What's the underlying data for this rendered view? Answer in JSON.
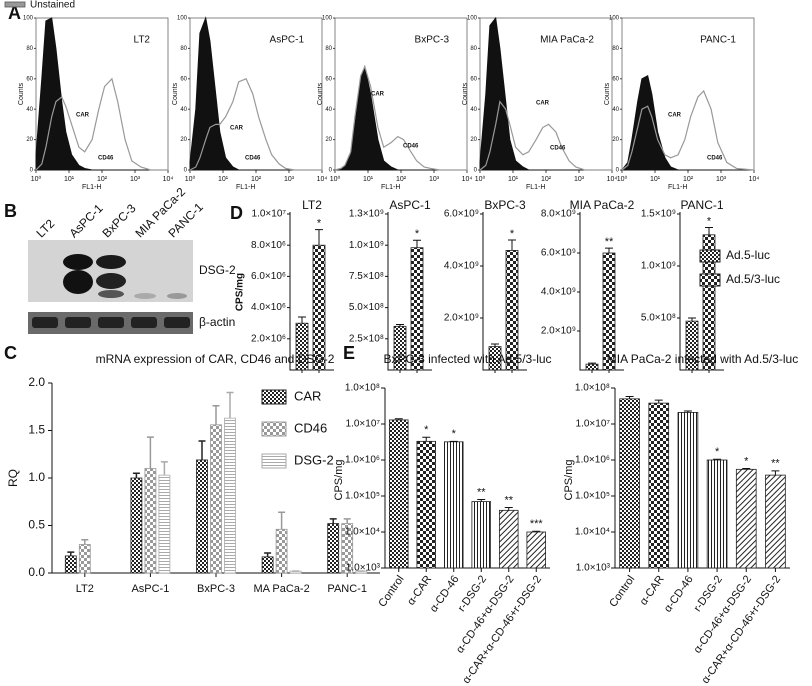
{
  "panel_labels": [
    "A",
    "B",
    "C",
    "D",
    "E"
  ],
  "blot": {
    "lanes": [
      "LT2",
      "AsPC-1",
      "BxPC-3",
      "MIA PaCa-2",
      "PANC-1"
    ],
    "bands": [
      "DSG-2",
      "β-actin"
    ]
  },
  "chart_data": [
    {
      "type": "flow",
      "legend": "Unstained",
      "xlabel": "FL1-H",
      "ylabel": "Counts",
      "log_x": true,
      "xlim": [
        1,
        10000
      ],
      "xticks": [
        {
          "value": 1,
          "label": "10⁰"
        },
        {
          "value": 10,
          "label": "10¹"
        },
        {
          "value": 100,
          "label": "10²"
        },
        {
          "value": 1000,
          "label": "10³"
        },
        {
          "value": 10000,
          "label": "10⁴"
        }
      ],
      "ylim": [
        0,
        100
      ],
      "yticks": [
        0,
        20,
        40,
        60,
        80,
        100
      ],
      "annotations": [
        "CAR",
        "CD46"
      ],
      "unstained_color": "#111111",
      "stained_color": "#999999",
      "x": [
        1,
        1.5,
        2,
        3,
        4,
        6,
        8,
        12,
        20,
        30,
        50,
        80,
        120,
        200,
        300,
        500,
        800,
        1500,
        3000,
        10000
      ],
      "panels": [
        {
          "title": "LT2",
          "unstained": [
            10,
            60,
            98,
            100,
            80,
            45,
            25,
            10,
            3,
            1,
            0,
            0,
            0,
            0,
            0,
            0,
            0,
            0,
            0,
            0
          ],
          "stained": [
            0,
            4,
            15,
            35,
            45,
            48,
            42,
            30,
            15,
            12,
            20,
            40,
            55,
            60,
            45,
            20,
            6,
            2,
            0,
            0
          ]
        },
        {
          "title": "AsPC-1",
          "unstained": [
            5,
            40,
            90,
            100,
            85,
            50,
            25,
            8,
            2,
            0,
            0,
            0,
            0,
            0,
            0,
            0,
            0,
            0,
            0,
            0
          ],
          "stained": [
            0,
            2,
            8,
            20,
            28,
            30,
            30,
            35,
            45,
            58,
            60,
            50,
            35,
            20,
            10,
            4,
            1,
            0,
            0,
            0
          ]
        },
        {
          "title": "BxPC-3",
          "unstained": [
            0,
            1,
            3,
            10,
            30,
            60,
            68,
            50,
            20,
            6,
            2,
            0,
            0,
            0,
            0,
            0,
            0,
            0,
            0,
            0
          ],
          "stained": [
            0,
            1,
            3,
            12,
            35,
            62,
            68,
            55,
            28,
            15,
            18,
            22,
            20,
            12,
            6,
            2,
            1,
            0,
            0,
            0
          ]
        },
        {
          "title": "MIA PaCa-2",
          "unstained": [
            5,
            50,
            95,
            100,
            80,
            45,
            20,
            6,
            2,
            0,
            0,
            0,
            0,
            0,
            0,
            0,
            0,
            0,
            0,
            0
          ],
          "stained": [
            0,
            3,
            12,
            30,
            45,
            40,
            30,
            15,
            10,
            12,
            20,
            28,
            30,
            25,
            15,
            6,
            2,
            0,
            0,
            0
          ]
        },
        {
          "title": "PANC-1",
          "unstained": [
            0,
            5,
            20,
            45,
            60,
            62,
            50,
            25,
            8,
            2,
            0,
            0,
            0,
            0,
            0,
            0,
            0,
            0,
            0,
            0
          ],
          "stained": [
            0,
            3,
            12,
            28,
            40,
            42,
            35,
            20,
            10,
            8,
            10,
            20,
            35,
            48,
            52,
            40,
            18,
            5,
            1,
            0
          ]
        }
      ]
    },
    {
      "type": "small-multiples",
      "ylabel": "CPS/mg",
      "legend": "right",
      "categories": [
        "LT2",
        "AsPC-1",
        "BxPC-3",
        "MIA PaCa-2",
        "PANC-1"
      ],
      "series": [
        {
          "name": "Ad.5-luc",
          "color": "#222222",
          "values": [
            3000000.0,
            350000000.0,
            900000000.0,
            300000000.0,
            470000000.0
          ],
          "errors": [
            400000.0,
            15000000.0,
            100000000.0,
            50000000.0,
            30000000.0
          ]
        },
        {
          "name": "Ad.5/3-luc",
          "color": "#222222",
          "values": [
            8000000.0,
            980000000.0,
            4600000000.0,
            6000000000.0,
            1300000000.0
          ],
          "errors": [
            1000000.0,
            60000000.0,
            400000000.0,
            250000000.0,
            70000000.0
          ]
        }
      ],
      "annotations": [
        "*",
        "*",
        "*",
        "**",
        "*"
      ],
      "axes": [
        {
          "ylim": [
            0,
            10000000.0
          ],
          "yticks": [
            {
              "value": 2000000.0,
              "label": "2.0×10⁶"
            },
            {
              "value": 4000000.0,
              "label": "4.0×10⁶"
            },
            {
              "value": 6000000.0,
              "label": "6.0×10⁶"
            },
            {
              "value": 8000000.0,
              "label": "8.0×10⁶"
            },
            {
              "value": 10000000.0,
              "label": "1.0×10⁷"
            }
          ]
        },
        {
          "ylim": [
            0,
            1250000000.0
          ],
          "yticks": [
            {
              "value": 250000000.0,
              "label": "2.5×10⁸"
            },
            {
              "value": 500000000.0,
              "label": "5.0×10⁸"
            },
            {
              "value": 750000000.0,
              "label": "7.5×10⁸"
            },
            {
              "value": 1000000000.0,
              "label": "1.0×10⁹"
            },
            {
              "value": 1250000000.0,
              "label": "1.3×10⁹"
            }
          ]
        },
        {
          "ylim": [
            0,
            6000000000.0
          ],
          "yticks": [
            {
              "value": 2000000000.0,
              "label": "2.0×10⁹"
            },
            {
              "value": 4000000000.0,
              "label": "4.0×10⁹"
            },
            {
              "value": 6000000000.0,
              "label": "6.0×10⁹"
            }
          ]
        },
        {
          "ylim": [
            0,
            8000000000.0
          ],
          "yticks": [
            {
              "value": 2000000000.0,
              "label": "2.0×10⁹"
            },
            {
              "value": 4000000000.0,
              "label": "4.0×10⁹"
            },
            {
              "value": 6000000000.0,
              "label": "6.0×10⁹"
            },
            {
              "value": 8000000000.0,
              "label": "8.0×10⁹"
            }
          ]
        },
        {
          "ylim": [
            0,
            1500000000.0
          ],
          "yticks": [
            {
              "value": 500000000.0,
              "label": "5.0×10⁸"
            },
            {
              "value": 1000000000.0,
              "label": "1.0×10⁹"
            },
            {
              "value": 1500000000.0,
              "label": "1.5×10⁹"
            }
          ]
        }
      ]
    },
    {
      "type": "grouped-bar",
      "title": "mRNA expression of CAR, CD46 and DSG-2",
      "ylabel": "RQ",
      "legend": "upper right",
      "categories": [
        "LT2",
        "AsPC-1",
        "BxPC-3",
        "MA PaCa-2",
        "PANC-1"
      ],
      "series": [
        {
          "name": "CAR",
          "color": "#222222",
          "values": [
            0.18,
            1.0,
            1.19,
            0.17,
            0.52
          ],
          "errors": [
            0.04,
            0.05,
            0.2,
            0.04,
            0.05
          ]
        },
        {
          "name": "CD46",
          "color": "#999999",
          "values": [
            0.3,
            1.1,
            1.56,
            0.46,
            0.52
          ],
          "errors": [
            0.05,
            0.33,
            0.2,
            0.18,
            0.05
          ]
        },
        {
          "name": "DSG-2",
          "color": "#aaaaaa",
          "values": [
            null,
            1.03,
            1.63,
            0.02,
            0.02
          ],
          "errors": [
            null,
            0.14,
            0.27,
            0,
            0
          ]
        }
      ],
      "ylim": [
        0,
        2.0
      ],
      "yticks": [
        {
          "value": 0,
          "label": "0.0"
        },
        0.5,
        {
          "value": 1.0,
          "label": "1.0"
        },
        1.5,
        {
          "value": 2.0,
          "label": "2.0"
        }
      ]
    },
    {
      "type": "bar",
      "title": "BxPC-3 infected with Ad.5/3-luc",
      "ylabel": "CPS/mg",
      "log_y": true,
      "color": "#222222",
      "categories": [
        "Control",
        "α-CAR",
        "α-CD-46",
        "r-DSG-2",
        "α-CD-46+α-DSG-2",
        "α-CAR+α-CD-46+r-DSG-2"
      ],
      "values": [
        13000000.0,
        3300000.0,
        3200000.0,
        70000.0,
        40000.0,
        10000.0
      ],
      "errors": [
        1000000.0,
        1000000.0,
        100000.0,
        10000.0,
        8000.0,
        500.0
      ],
      "annotations": [
        null,
        "*",
        "*",
        "**",
        "**",
        "***"
      ],
      "ylim": [
        1000.0,
        100000000.0
      ],
      "yticks": [
        {
          "value": 1000.0,
          "label": "1.0×10³"
        },
        {
          "value": 10000.0,
          "label": "1.0×10⁴"
        },
        {
          "value": 100000.0,
          "label": "1.0×10⁵"
        },
        {
          "value": 1000000.0,
          "label": "1.0×10⁶"
        },
        {
          "value": 10000000.0,
          "label": "1.0×10⁷"
        },
        {
          "value": 100000000.0,
          "label": "1.0×10⁸"
        }
      ]
    },
    {
      "type": "bar",
      "title": "MIA PaCa-2 infected with Ad.5/3-luc",
      "ylabel": "CPS/mg",
      "log_y": true,
      "color": "#222222",
      "categories": [
        "Control",
        "α-CAR",
        "α-CD-46",
        "r-DSG-2",
        "α-CD-46+α-DSG-2",
        "α-CAR+α-CD-46+r-DSG-2"
      ],
      "values": [
        50000000.0,
        38000000.0,
        21000000.0,
        1000000.0,
        550000.0,
        380000.0
      ],
      "errors": [
        8000000.0,
        8000000.0,
        2000000.0,
        50000.0,
        30000.0,
        120000.0
      ],
      "annotations": [
        null,
        null,
        null,
        "*",
        "*",
        "**"
      ],
      "ylim": [
        1000.0,
        100000000.0
      ],
      "yticks": [
        {
          "value": 1000.0,
          "label": "1.0×10³"
        },
        {
          "value": 10000.0,
          "label": "1.0×10⁴"
        },
        {
          "value": 100000.0,
          "label": "1.0×10⁵"
        },
        {
          "value": 1000000.0,
          "label": "1.0×10⁶"
        },
        {
          "value": 10000000.0,
          "label": "1.0×10⁷"
        },
        {
          "value": 100000000.0,
          "label": "1.0×10⁸"
        }
      ]
    }
  ]
}
